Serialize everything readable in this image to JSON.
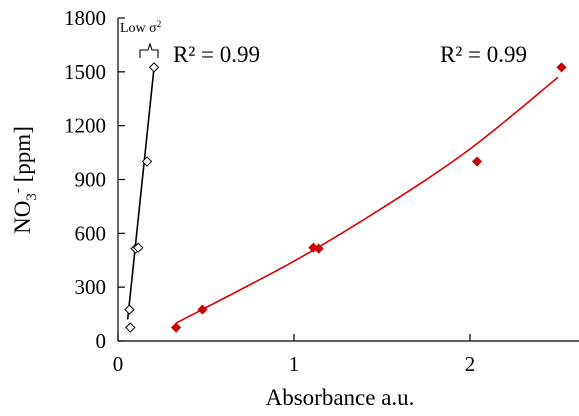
{
  "chart_data": {
    "type": "scatter",
    "title": "",
    "xlabel": "Absorbance a.u.",
    "ylabel": {
      "base": "NO",
      "sub": "3",
      "sup": "-",
      "unit": " [ppm]"
    },
    "xlim": [
      0,
      2.6
    ],
    "ylim": [
      0,
      1800
    ],
    "xticks": [
      0,
      1,
      2
    ],
    "yticks": [
      0,
      300,
      600,
      900,
      1200,
      1500,
      1800
    ],
    "grid": false,
    "series": [
      {
        "marker": "open-diamond",
        "color": "#000000",
        "points": [
          [
            0.07,
            75
          ],
          [
            0.065,
            175
          ],
          [
            0.1,
            515
          ],
          [
            0.115,
            520
          ],
          [
            0.165,
            1000
          ],
          [
            0.205,
            1525
          ]
        ],
        "fit": {
          "kind": "linear",
          "x": [
            0.055,
            0.205
          ],
          "y": [
            120,
            1525
          ],
          "color": "#000000"
        },
        "r2_label": "R² = 0.99",
        "annotation": {
          "text": "Low σ",
          "sup": "2"
        }
      },
      {
        "marker": "filled-diamond",
        "color": "#cc0000",
        "points": [
          [
            0.33,
            75
          ],
          [
            0.48,
            175
          ],
          [
            1.11,
            520
          ],
          [
            1.14,
            515
          ],
          [
            2.04,
            1000
          ],
          [
            2.52,
            1525
          ]
        ],
        "fit": {
          "kind": "curve",
          "x": [
            0.33,
            1.0,
            1.5,
            2.0,
            2.5
          ],
          "y": [
            100,
            445,
            740,
            1070,
            1470
          ],
          "color": "#e00000"
        },
        "r2_label": "R² = 0.99"
      }
    ]
  }
}
